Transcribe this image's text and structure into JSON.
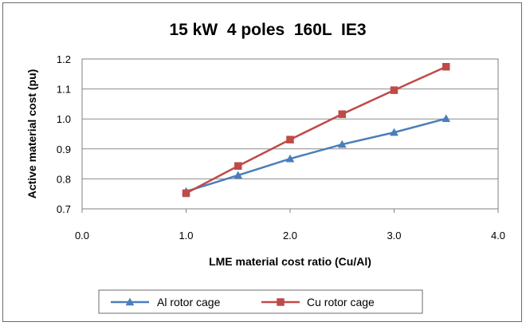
{
  "chart_data": {
    "type": "line",
    "title": "15 kW  4 poles  160L  IE3",
    "xlabel": "LME material cost ratio (Cu/Al)",
    "ylabel": "Active material cost (pu)",
    "xlim": [
      0.0,
      4.0
    ],
    "ylim": [
      0.7,
      1.2
    ],
    "x_ticks": [
      "0.0",
      "1.0",
      "2.0",
      "3.0",
      "4.0"
    ],
    "y_ticks": [
      "0.7",
      "0.8",
      "0.9",
      "1.0",
      "1.1",
      "1.2"
    ],
    "x": [
      1.0,
      1.5,
      2.0,
      2.5,
      3.0,
      3.5
    ],
    "grid": "horizontal",
    "legend_position": "bottom",
    "series": [
      {
        "name": "Al rotor cage",
        "values": [
          0.758,
          0.812,
          0.867,
          0.915,
          0.955,
          1.001
        ],
        "color": "#4a7ebb",
        "marker": "triangle"
      },
      {
        "name": "Cu rotor cage",
        "values": [
          0.752,
          0.843,
          0.931,
          1.016,
          1.096,
          1.174
        ],
        "color": "#be4b48",
        "marker": "square"
      }
    ]
  }
}
